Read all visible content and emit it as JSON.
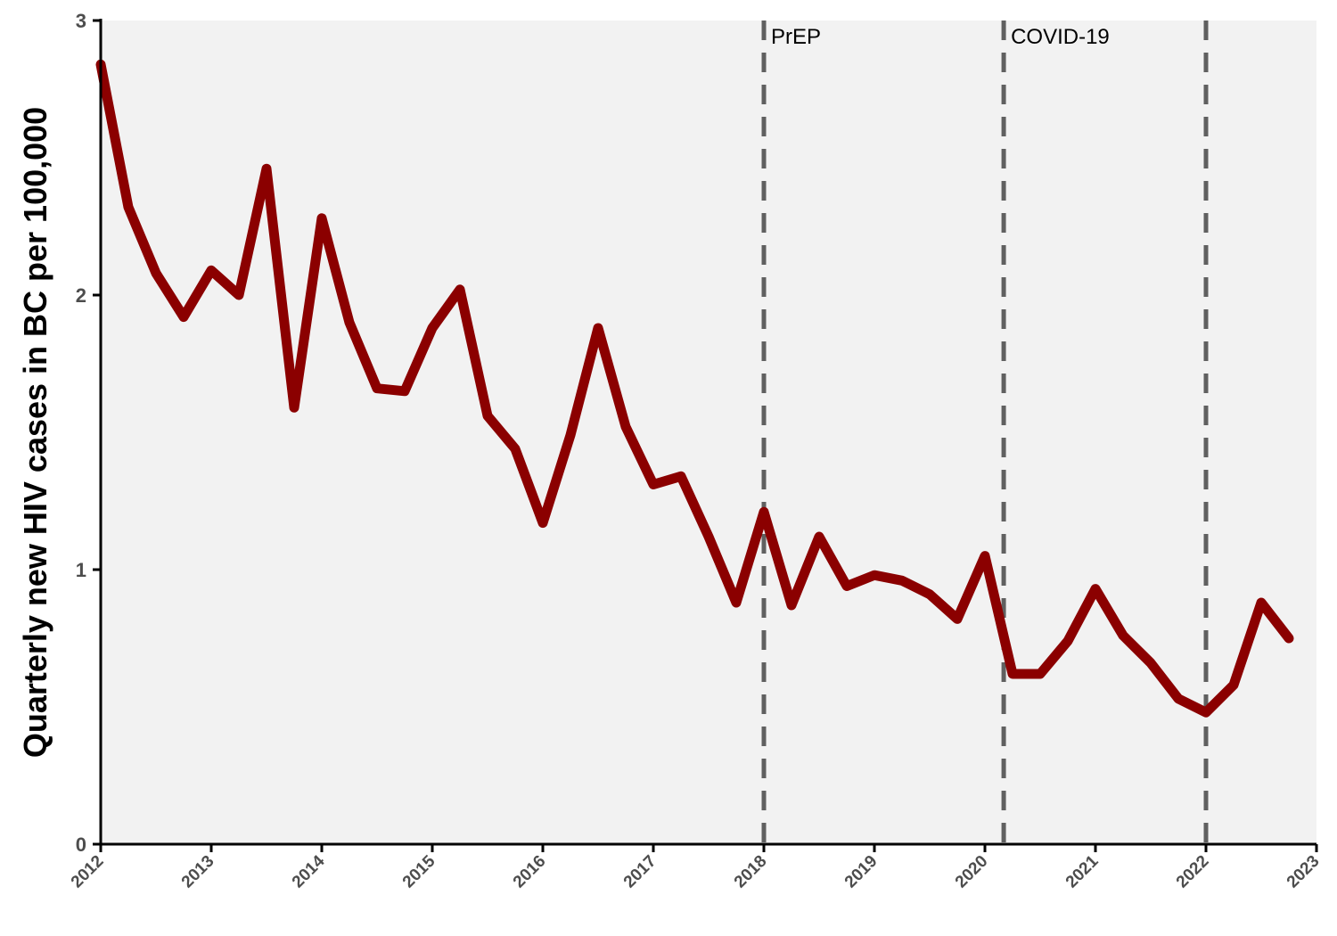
{
  "chart_data": {
    "type": "line",
    "title": "",
    "xlabel": "",
    "ylabel": "Quarterly new HIV cases in BC per 100,000",
    "xlim": [
      2012,
      2023
    ],
    "ylim": [
      0,
      3
    ],
    "x_ticks": [
      "2012",
      "2013",
      "2014",
      "2015",
      "2016",
      "2017",
      "2018",
      "2019",
      "2020",
      "2021",
      "2022",
      "2023"
    ],
    "y_ticks": [
      "0",
      "1",
      "2",
      "3"
    ],
    "grid": false,
    "background": "#f2f2f2",
    "series": [
      {
        "color": "#8b0000",
        "x": [
          2012.0,
          2012.25,
          2012.5,
          2012.75,
          2013.0,
          2013.25,
          2013.5,
          2013.75,
          2014.0,
          2014.25,
          2014.5,
          2014.75,
          2015.0,
          2015.25,
          2015.5,
          2015.75,
          2016.0,
          2016.25,
          2016.5,
          2016.75,
          2017.0,
          2017.25,
          2017.5,
          2017.75,
          2018.0,
          2018.25,
          2018.5,
          2018.75,
          2019.0,
          2019.25,
          2019.5,
          2019.75,
          2020.0,
          2020.25,
          2020.5,
          2020.75,
          2021.0,
          2021.25,
          2021.5,
          2021.75,
          2022.0,
          2022.25,
          2022.5,
          2022.75
        ],
        "values": [
          2.84,
          2.32,
          2.08,
          1.92,
          2.09,
          2.0,
          2.46,
          1.59,
          2.28,
          1.9,
          1.66,
          1.65,
          1.88,
          2.02,
          1.56,
          1.44,
          1.17,
          1.49,
          1.88,
          1.52,
          1.31,
          1.34,
          1.12,
          0.88,
          1.21,
          0.87,
          1.12,
          0.94,
          0.98,
          0.96,
          0.91,
          0.82,
          1.05,
          0.62,
          0.62,
          0.74,
          0.93,
          0.76,
          0.66,
          0.53,
          0.48,
          0.58,
          0.88,
          0.75
        ]
      }
    ],
    "vlines": [
      {
        "x": 2018.0,
        "label": "PrEP",
        "color": "#606060"
      },
      {
        "x": 2020.17,
        "label": "COVID-19",
        "color": "#606060"
      },
      {
        "x": 2022.0,
        "label": "",
        "color": "#606060"
      }
    ]
  }
}
